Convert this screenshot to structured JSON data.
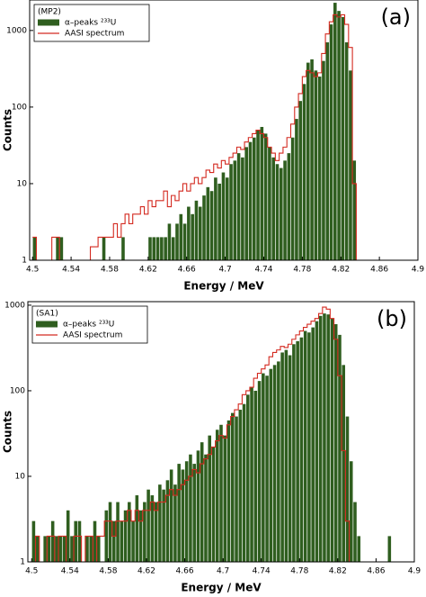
{
  "chart_data": [
    {
      "type": "histogram",
      "panel_label": "(a)",
      "legend_title": "(MP2)",
      "legend": "upper left",
      "xlabel": "Energy / MeV",
      "ylabel": "Counts",
      "log_y": true,
      "grid": false,
      "xlim": [
        4.497,
        4.9
      ],
      "ylim": [
        1,
        2500
      ],
      "xticks": [
        4.5,
        4.54,
        4.58,
        4.62,
        4.66,
        4.7,
        4.74,
        4.78,
        4.82,
        4.86,
        4.9
      ],
      "yticks": [
        1,
        10,
        100,
        1000
      ],
      "bins": [
        4.5,
        4.504,
        4.508,
        4.512,
        4.516,
        4.52,
        4.524,
        4.528,
        4.532,
        4.536,
        4.54,
        4.544,
        4.548,
        4.552,
        4.556,
        4.56,
        4.564,
        4.568,
        4.572,
        4.576,
        4.58,
        4.584,
        4.588,
        4.592,
        4.596,
        4.6,
        4.604,
        4.608,
        4.612,
        4.616,
        4.62,
        4.624,
        4.628,
        4.632,
        4.636,
        4.64,
        4.644,
        4.648,
        4.652,
        4.656,
        4.66,
        4.664,
        4.668,
        4.672,
        4.676,
        4.68,
        4.684,
        4.688,
        4.692,
        4.696,
        4.7,
        4.704,
        4.708,
        4.712,
        4.716,
        4.72,
        4.724,
        4.728,
        4.732,
        4.736,
        4.74,
        4.744,
        4.748,
        4.752,
        4.756,
        4.76,
        4.764,
        4.768,
        4.772,
        4.776,
        4.78,
        4.784,
        4.788,
        4.792,
        4.796,
        4.8,
        4.804,
        4.808,
        4.812,
        4.816,
        4.82,
        4.824,
        4.828,
        4.832,
        4.836,
        4.84,
        4.844,
        4.848,
        4.852,
        4.856,
        4.86,
        4.864,
        4.868,
        4.872,
        4.876,
        4.88,
        4.884,
        4.888,
        4.892,
        4.896,
        4.9
      ],
      "series": [
        {
          "name": "α–peaks ²³³U",
          "color": "#2f5e1f",
          "style": "bar",
          "values": [
            2,
            1,
            0,
            0,
            0,
            0,
            2,
            2,
            0,
            0,
            0,
            1,
            0,
            0,
            0,
            0,
            0,
            0,
            2,
            0,
            0,
            0,
            0,
            2,
            0,
            0,
            0,
            0,
            0,
            0,
            2,
            2,
            2,
            2,
            2,
            3,
            2,
            3,
            4,
            3,
            5,
            4,
            6,
            5,
            7,
            9,
            8,
            12,
            10,
            14,
            12,
            18,
            20,
            25,
            22,
            30,
            35,
            40,
            50,
            55,
            45,
            30,
            22,
            18,
            16,
            20,
            25,
            40,
            70,
            120,
            200,
            380,
            420,
            300,
            250,
            400,
            700,
            1200,
            2300,
            1800,
            1500,
            700,
            300,
            20,
            1,
            0,
            0,
            0,
            0,
            0,
            0,
            0,
            0,
            0,
            0,
            0,
            0,
            0,
            0,
            0
          ]
        },
        {
          "name": "AASI spectrum",
          "color": "#d42a20",
          "style": "step",
          "values": [
            2,
            1,
            1,
            1,
            1,
            2,
            2,
            1,
            1,
            1,
            1,
            1,
            1,
            1,
            1,
            1.5,
            1.5,
            2,
            2,
            2,
            2,
            3,
            2,
            3,
            4,
            3,
            4,
            4,
            5,
            4,
            6,
            5,
            6,
            6,
            8,
            5,
            7,
            6,
            8,
            10,
            8,
            10,
            12,
            10,
            12,
            15,
            14,
            18,
            16,
            20,
            18,
            22,
            25,
            30,
            28,
            35,
            40,
            45,
            50,
            45,
            40,
            30,
            25,
            20,
            25,
            30,
            40,
            60,
            100,
            150,
            250,
            300,
            280,
            250,
            280,
            500,
            900,
            1300,
            1600,
            1500,
            1600,
            1200,
            600,
            10,
            1,
            1,
            1,
            1,
            1,
            1,
            1,
            1,
            1,
            1,
            1,
            1,
            1,
            1,
            1,
            1
          ]
        }
      ]
    },
    {
      "type": "histogram",
      "panel_label": "(b)",
      "legend_title": "(SA1)",
      "legend": "upper left",
      "xlabel": "Energy / MeV",
      "ylabel": "Counts",
      "log_y": true,
      "grid": false,
      "xlim": [
        4.496,
        4.9
      ],
      "ylim": [
        1,
        1100
      ],
      "xticks": [
        4.5,
        4.54,
        4.58,
        4.62,
        4.66,
        4.7,
        4.74,
        4.78,
        4.82,
        4.86,
        4.9
      ],
      "yticks": [
        1,
        10,
        100,
        1000
      ],
      "bins": [
        4.5,
        4.504,
        4.508,
        4.512,
        4.516,
        4.52,
        4.524,
        4.528,
        4.532,
        4.536,
        4.54,
        4.544,
        4.548,
        4.552,
        4.556,
        4.56,
        4.564,
        4.568,
        4.572,
        4.576,
        4.58,
        4.584,
        4.588,
        4.592,
        4.596,
        4.6,
        4.604,
        4.608,
        4.612,
        4.616,
        4.62,
        4.624,
        4.628,
        4.632,
        4.636,
        4.64,
        4.644,
        4.648,
        4.652,
        4.656,
        4.66,
        4.664,
        4.668,
        4.672,
        4.676,
        4.68,
        4.684,
        4.688,
        4.692,
        4.696,
        4.7,
        4.704,
        4.708,
        4.712,
        4.716,
        4.72,
        4.724,
        4.728,
        4.732,
        4.736,
        4.74,
        4.744,
        4.748,
        4.752,
        4.756,
        4.76,
        4.764,
        4.768,
        4.772,
        4.776,
        4.78,
        4.784,
        4.788,
        4.792,
        4.796,
        4.8,
        4.804,
        4.808,
        4.812,
        4.816,
        4.82,
        4.824,
        4.828,
        4.832,
        4.836,
        4.84,
        4.844,
        4.848,
        4.852,
        4.856,
        4.86,
        4.864,
        4.868,
        4.872,
        4.876,
        4.88,
        4.884,
        4.888,
        4.892,
        4.896,
        4.9
      ],
      "series": [
        {
          "name": "α–peaks ²³³U",
          "color": "#2f5e1f",
          "style": "bar",
          "values": [
            3,
            2,
            1,
            2,
            2,
            3,
            2,
            2,
            2,
            4,
            2,
            3,
            3,
            1,
            2,
            2,
            3,
            2,
            1,
            4,
            5,
            3,
            5,
            3,
            4,
            5,
            3,
            6,
            4,
            5,
            7,
            6,
            5,
            8,
            7,
            9,
            12,
            8,
            14,
            12,
            15,
            18,
            14,
            20,
            25,
            18,
            30,
            22,
            35,
            40,
            30,
            45,
            55,
            50,
            60,
            70,
            90,
            110,
            100,
            130,
            160,
            150,
            180,
            200,
            220,
            280,
            300,
            260,
            350,
            380,
            420,
            500,
            480,
            550,
            650,
            750,
            800,
            780,
            700,
            600,
            450,
            200,
            50,
            15,
            5,
            2,
            0,
            0,
            0,
            0,
            0,
            0,
            0,
            2,
            0,
            0,
            0,
            0,
            0,
            0
          ]
        },
        {
          "name": "AASI spectrum",
          "color": "#d42a20",
          "style": "step",
          "values": [
            1,
            2,
            1,
            1,
            2,
            2,
            1,
            2,
            2,
            1,
            1,
            2,
            2,
            1,
            2,
            2,
            1,
            2,
            2,
            3,
            3,
            2,
            3,
            3,
            3,
            4,
            3,
            4,
            3,
            4,
            4,
            5,
            4,
            5,
            5,
            6,
            7,
            6,
            7,
            8,
            9,
            10,
            12,
            11,
            14,
            16,
            18,
            22,
            26,
            30,
            28,
            40,
            50,
            60,
            70,
            90,
            100,
            110,
            140,
            160,
            180,
            200,
            250,
            280,
            300,
            330,
            320,
            350,
            400,
            450,
            500,
            550,
            600,
            650,
            700,
            800,
            950,
            900,
            700,
            400,
            150,
            20,
            3,
            1,
            1,
            1,
            1,
            1,
            1,
            1,
            1,
            1,
            1,
            1,
            1,
            1,
            1,
            1,
            1,
            1
          ]
        }
      ]
    }
  ]
}
